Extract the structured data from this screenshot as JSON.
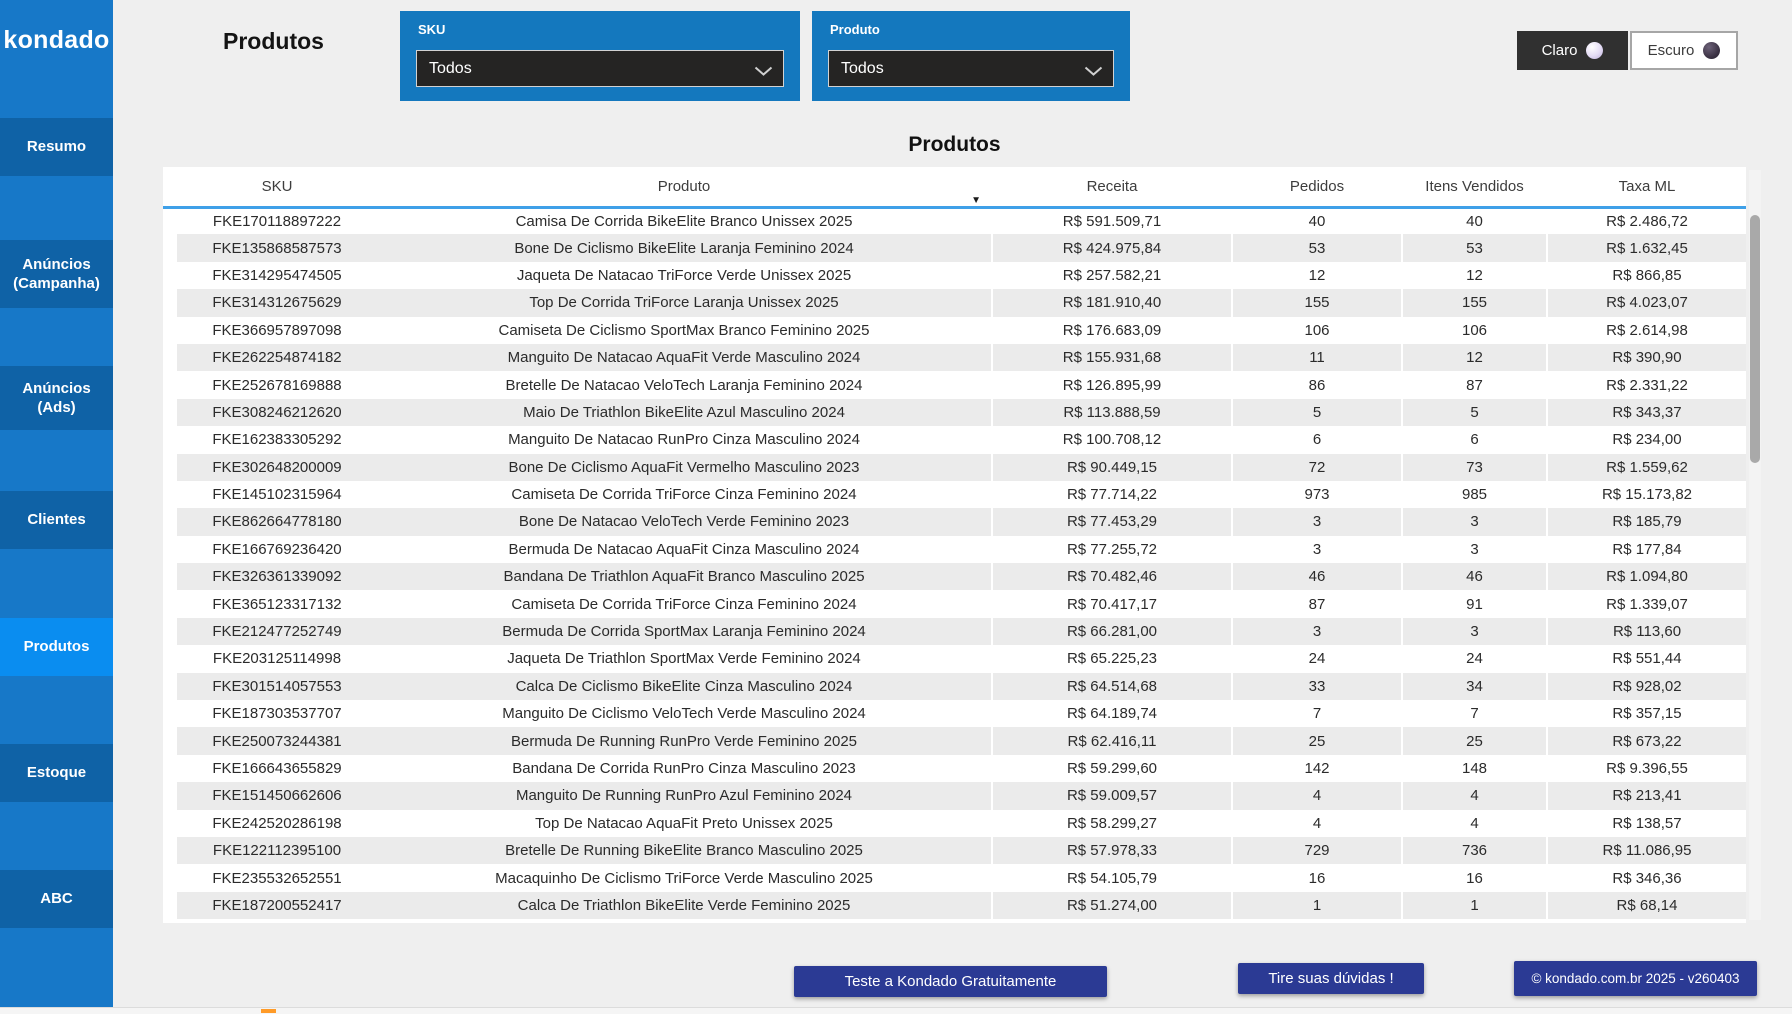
{
  "sidebar": {
    "logo_text": "kondado",
    "items": [
      {
        "id": "resumo",
        "label": "Resumo",
        "active": false
      },
      {
        "id": "anuncios-campanha",
        "label": "Anúncios\n(Campanha)",
        "active": false
      },
      {
        "id": "anuncios-ads",
        "label": "Anúncios\n(Ads)",
        "active": false
      },
      {
        "id": "clientes",
        "label": "Clientes",
        "active": false
      },
      {
        "id": "produtos",
        "label": "Produtos",
        "active": true
      },
      {
        "id": "estoque",
        "label": "Estoque",
        "active": false
      },
      {
        "id": "abc",
        "label": "ABC",
        "active": false
      }
    ]
  },
  "header": {
    "page_title": "Produtos",
    "filters": {
      "sku": {
        "label": "SKU",
        "value": "Todos"
      },
      "produto": {
        "label": "Produto",
        "value": "Todos"
      }
    },
    "theme_toggle": {
      "light_label": "Claro",
      "dark_label": "Escuro"
    }
  },
  "table": {
    "title": "Produtos",
    "columns": [
      "SKU",
      "Produto",
      "Receita",
      "Pedidos",
      "Itens Vendidos",
      "Taxa ML"
    ],
    "sort": {
      "column": "Produto",
      "direction": "desc",
      "icon": "▼"
    },
    "rows": [
      [
        "FKE170118897222",
        "Camisa De Corrida BikeElite Branco Unissex 2025",
        "R$ 591.509,71",
        "40",
        "40",
        "R$ 2.486,72"
      ],
      [
        "FKE135868587573",
        "Bone De Ciclismo BikeElite Laranja Feminino 2024",
        "R$ 424.975,84",
        "53",
        "53",
        "R$ 1.632,45"
      ],
      [
        "FKE314295474505",
        "Jaqueta De Natacao TriForce Verde Unissex 2025",
        "R$ 257.582,21",
        "12",
        "12",
        "R$ 866,85"
      ],
      [
        "FKE314312675629",
        "Top De Corrida TriForce Laranja Unissex 2025",
        "R$ 181.910,40",
        "155",
        "155",
        "R$ 4.023,07"
      ],
      [
        "FKE366957897098",
        "Camiseta De Ciclismo SportMax Branco Feminino 2025",
        "R$ 176.683,09",
        "106",
        "106",
        "R$ 2.614,98"
      ],
      [
        "FKE262254874182",
        "Manguito De Natacao AquaFit Verde Masculino 2024",
        "R$ 155.931,68",
        "11",
        "12",
        "R$ 390,90"
      ],
      [
        "FKE252678169888",
        "Bretelle De Natacao VeloTech Laranja Feminino 2024",
        "R$ 126.895,99",
        "86",
        "87",
        "R$ 2.331,22"
      ],
      [
        "FKE308246212620",
        "Maio De Triathlon BikeElite Azul Masculino 2024",
        "R$ 113.888,59",
        "5",
        "5",
        "R$ 343,37"
      ],
      [
        "FKE162383305292",
        "Manguito De Natacao RunPro Cinza Masculino 2024",
        "R$ 100.708,12",
        "6",
        "6",
        "R$ 234,00"
      ],
      [
        "FKE302648200009",
        "Bone De Ciclismo AquaFit Vermelho Masculino 2023",
        "R$ 90.449,15",
        "72",
        "73",
        "R$ 1.559,62"
      ],
      [
        "FKE145102315964",
        "Camiseta De Corrida TriForce Cinza Feminino 2024",
        "R$ 77.714,22",
        "973",
        "985",
        "R$ 15.173,82"
      ],
      [
        "FKE862664778180",
        "Bone De Natacao VeloTech Verde Feminino 2023",
        "R$ 77.453,29",
        "3",
        "3",
        "R$ 185,79"
      ],
      [
        "FKE166769236420",
        "Bermuda De Natacao AquaFit Cinza Masculino 2024",
        "R$ 77.255,72",
        "3",
        "3",
        "R$ 177,84"
      ],
      [
        "FKE326361339092",
        "Bandana De Triathlon AquaFit Branco Masculino 2025",
        "R$ 70.482,46",
        "46",
        "46",
        "R$ 1.094,80"
      ],
      [
        "FKE365123317132",
        "Camiseta De Corrida TriForce Cinza Feminino 2024",
        "R$ 70.417,17",
        "87",
        "91",
        "R$ 1.339,07"
      ],
      [
        "FKE212477252749",
        "Bermuda De Corrida SportMax Laranja Feminino 2024",
        "R$ 66.281,00",
        "3",
        "3",
        "R$ 113,60"
      ],
      [
        "FKE203125114998",
        "Jaqueta De Triathlon SportMax Verde Feminino 2024",
        "R$ 65.225,23",
        "24",
        "24",
        "R$ 551,44"
      ],
      [
        "FKE301514057553",
        "Calca De Ciclismo BikeElite Cinza Masculino 2024",
        "R$ 64.514,68",
        "33",
        "34",
        "R$ 928,02"
      ],
      [
        "FKE187303537707",
        "Manguito De Ciclismo VeloTech Verde Masculino 2024",
        "R$ 64.189,74",
        "7",
        "7",
        "R$ 357,15"
      ],
      [
        "FKE250073244381",
        "Bermuda De Running RunPro Verde Feminino 2025",
        "R$ 62.416,11",
        "25",
        "25",
        "R$ 673,22"
      ],
      [
        "FKE166643655829",
        "Bandana De Corrida RunPro Cinza Masculino 2023",
        "R$ 59.299,60",
        "142",
        "148",
        "R$ 9.396,55"
      ],
      [
        "FKE151450662606",
        "Manguito De Running RunPro Azul Feminino 2024",
        "R$ 59.009,57",
        "4",
        "4",
        "R$ 213,41"
      ],
      [
        "FKE242520286198",
        "Top De Natacao AquaFit Preto Unissex 2025",
        "R$ 58.299,27",
        "4",
        "4",
        "R$ 138,57"
      ],
      [
        "FKE122112395100",
        "Bretelle De Running BikeElite Branco Masculino 2025",
        "R$ 57.978,33",
        "729",
        "736",
        "R$ 11.086,95"
      ],
      [
        "FKE235532652551",
        "Macaquinho De Ciclismo TriForce Verde Masculino 2025",
        "R$ 54.105,79",
        "16",
        "16",
        "R$ 346,36"
      ],
      [
        "FKE187200552417",
        "Calca De Triathlon BikeElite Verde Feminino 2025",
        "R$ 51.274,00",
        "1",
        "1",
        "R$ 68,14"
      ]
    ]
  },
  "footer": {
    "cta_trial": "Teste a Kondado Gratuitamente",
    "cta_questions": "Tire suas dúvidas !",
    "copyright": "© kondado.com.br 2025 - v260403"
  },
  "colors": {
    "page_bg": "#efefef",
    "sidebar_bg": "#1778c8",
    "sidebar_item": "#0f62a6",
    "sidebar_active": "#0a8df0",
    "panel_blue": "#1478be",
    "dropdown_dark": "#252423",
    "claro_bg": "#303030",
    "underline": "#3fa0e8",
    "stripe": "#ebebeb",
    "navy": "#2b3a94"
  }
}
